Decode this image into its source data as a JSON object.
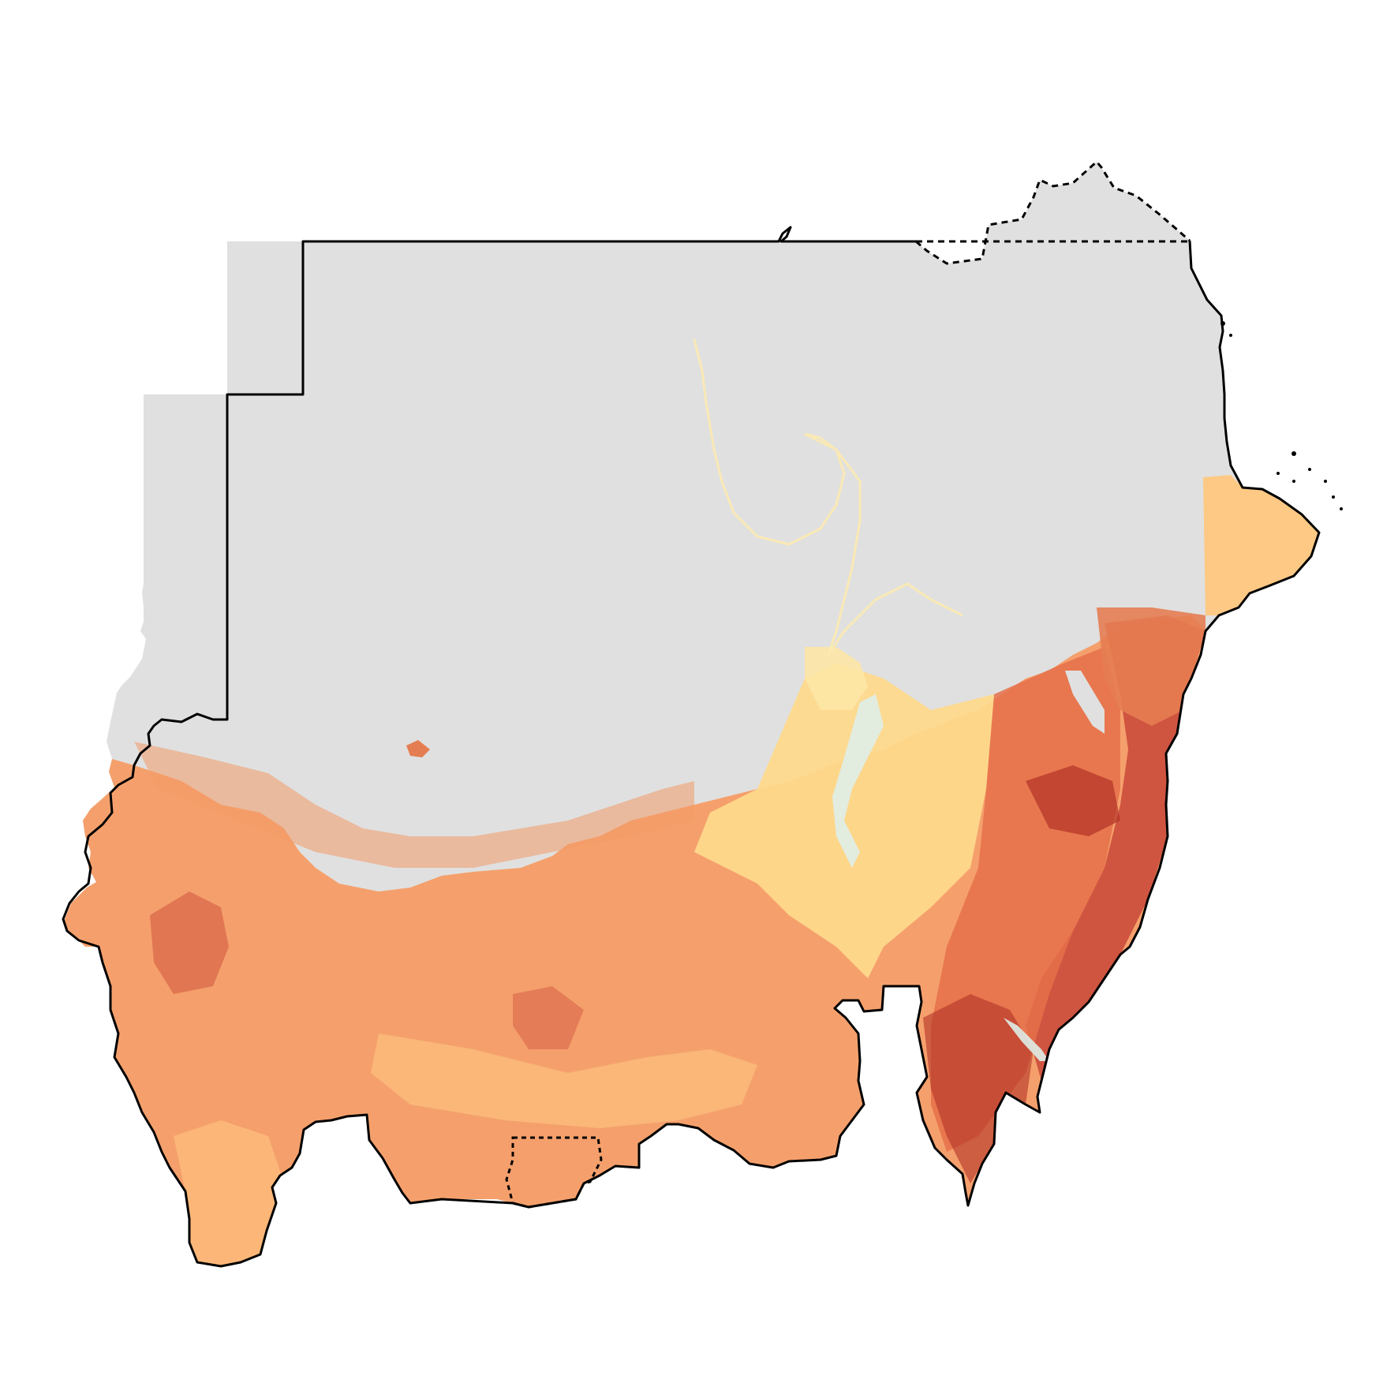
{
  "map": {
    "type": "choropleth-raster",
    "region_outline_style": "solid black",
    "disputed_boundary_style": "dashed black",
    "colors": {
      "no_data": "#e0e0e0",
      "water_pale": "#dfeee8",
      "light_yellow": "#fee9a0",
      "yellow": "#fed587",
      "light_orange": "#fdbb7a",
      "orange": "#f79c62",
      "dark_orange": "#e8744a",
      "red": "#c8483a",
      "dark_red": "#b23226",
      "outline": "#000000"
    }
  }
}
